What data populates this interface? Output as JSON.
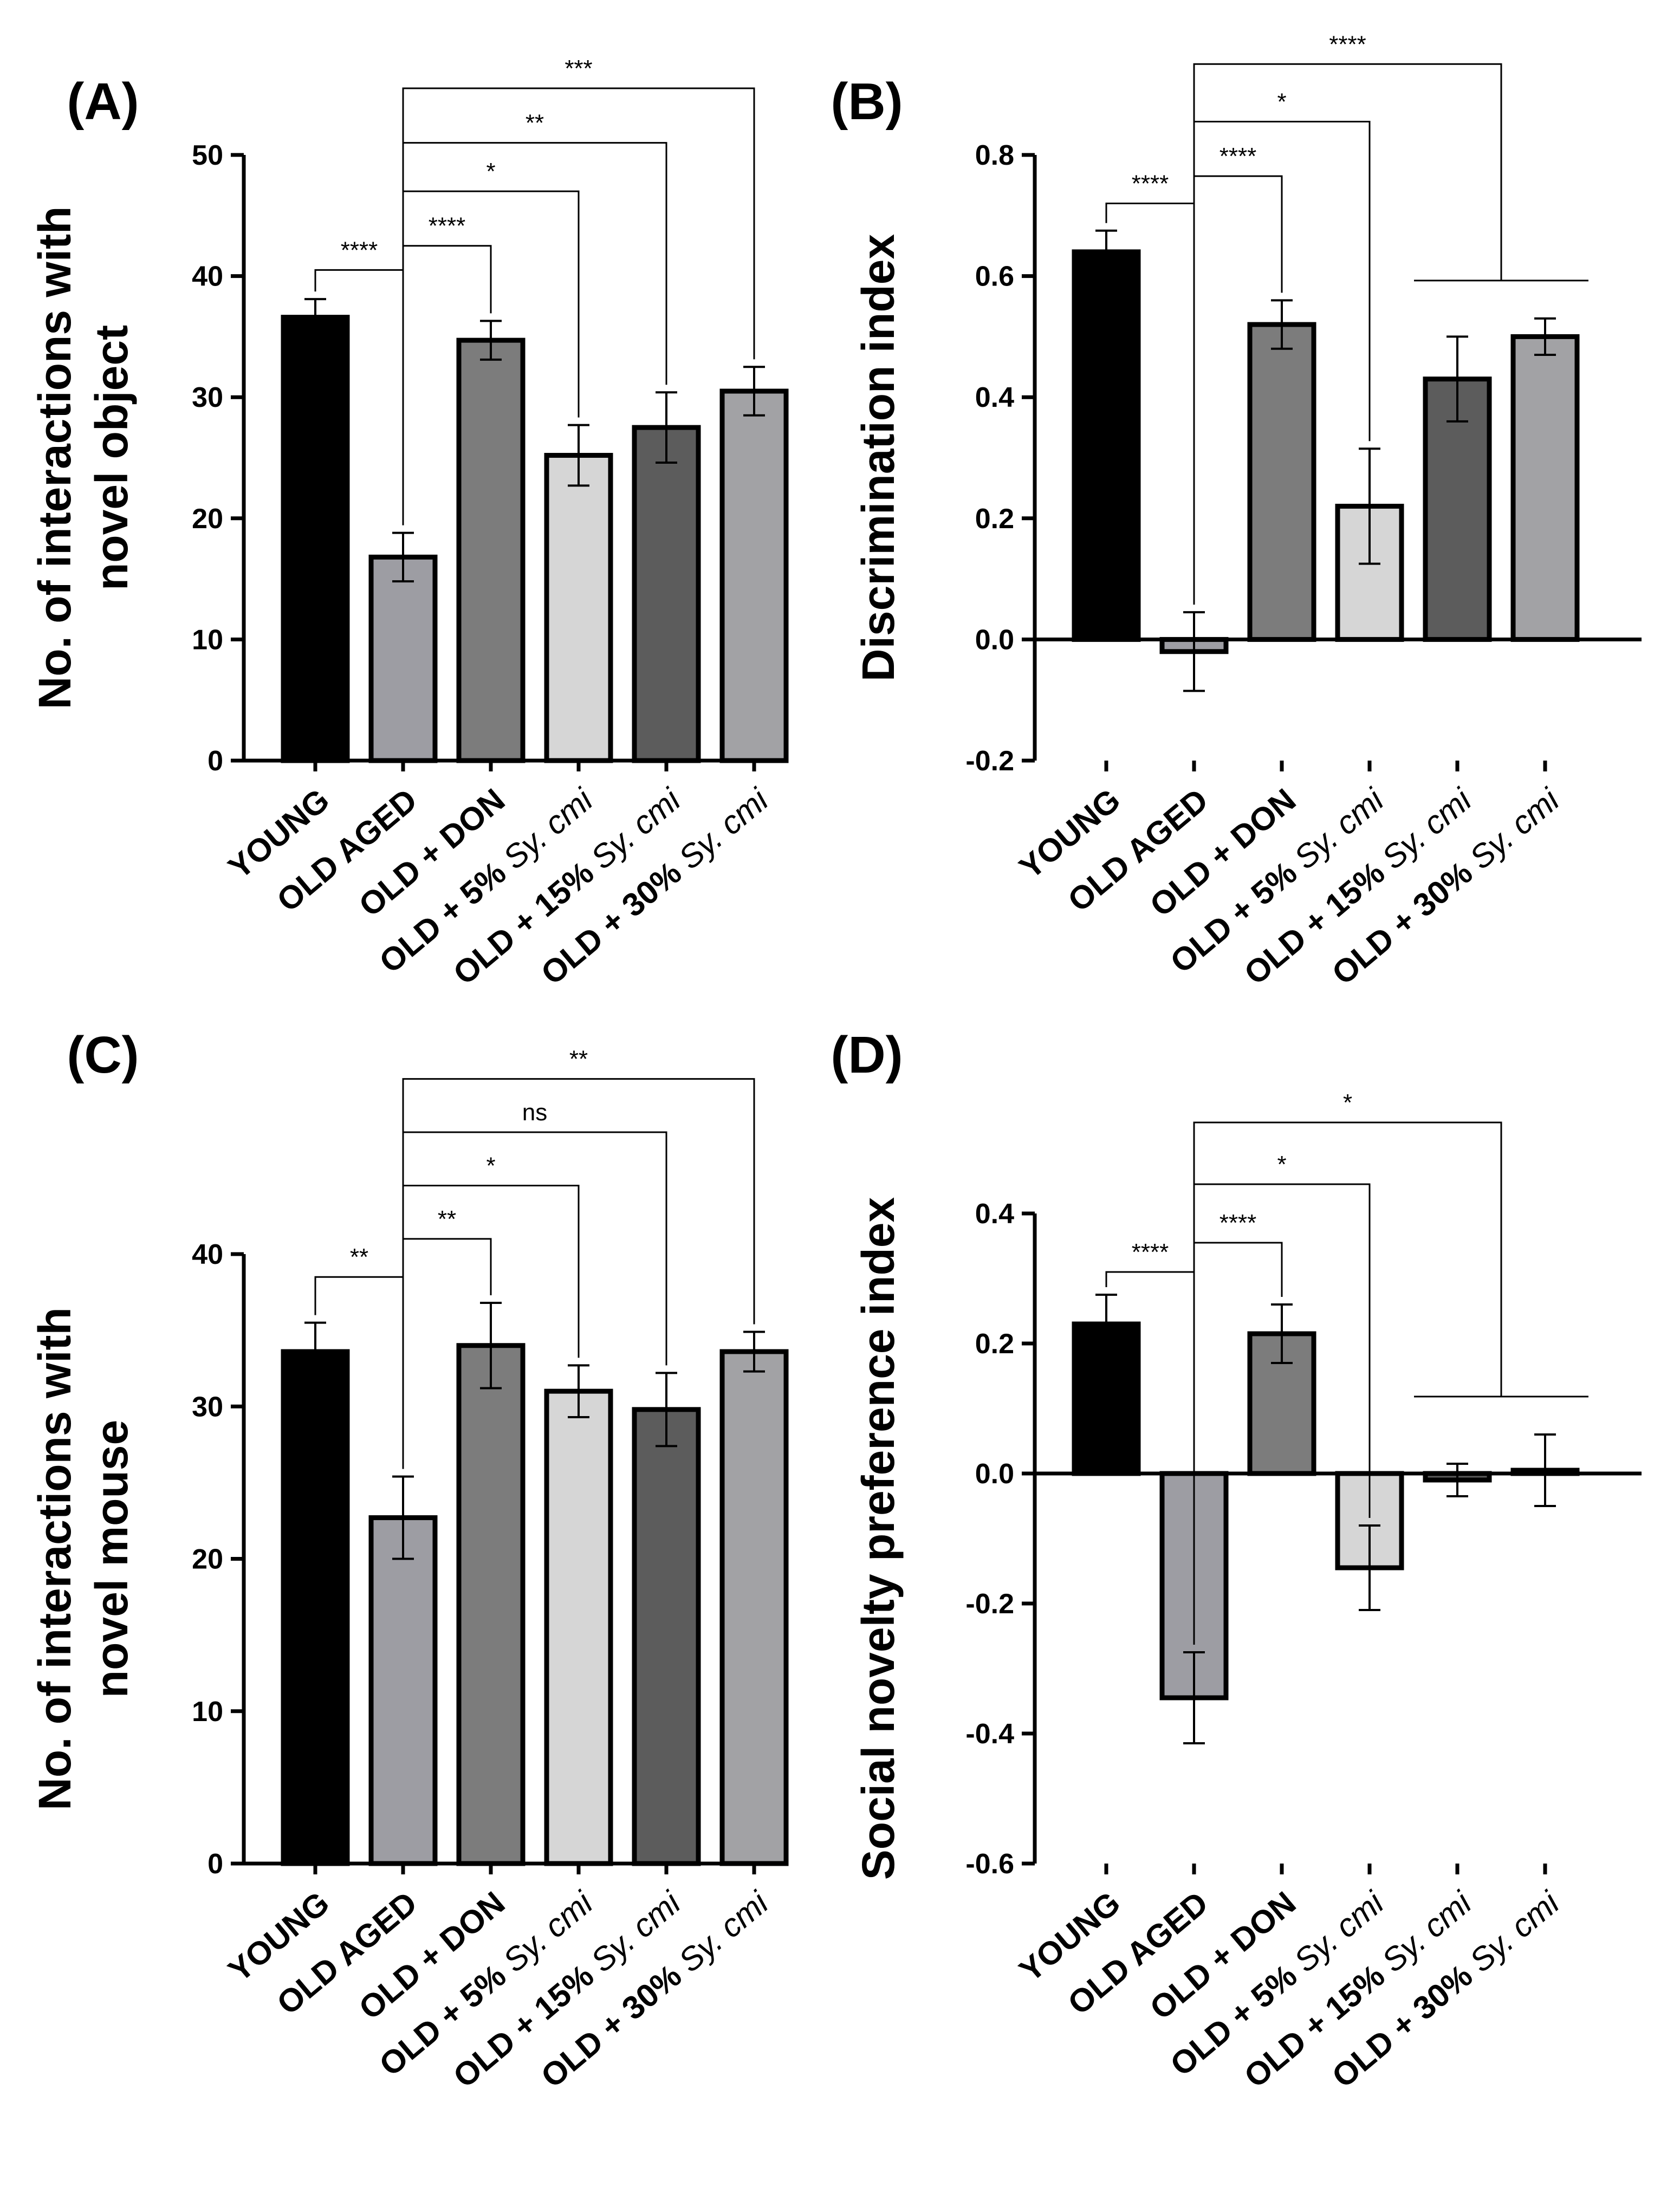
{
  "colors": {
    "YOUNG": "#000000",
    "OLD AGED": "#9d9da3",
    "OLD + DON": "#7c7c7c",
    "OLD + 5% Sy. cmi": "#d6d6d6",
    "OLD + 15% Sy. cmi": "#5c5c5c",
    "OLD + 30% Sy. cmi": "#a2a2a5"
  },
  "chart_data": [
    {
      "id": "A",
      "type": "bar",
      "panel_label": "(A)",
      "ylabel_lines": [
        "No. of interactions with",
        "novel object"
      ],
      "categories": [
        {
          "bold": "YOUNG",
          "italic": ""
        },
        {
          "bold": "OLD AGED",
          "italic": ""
        },
        {
          "bold": "OLD + DON",
          "italic": ""
        },
        {
          "bold": "OLD + 5%",
          "italic": " Sy. cmi"
        },
        {
          "bold": "OLD + 15%",
          "italic": " Sy. cmi"
        },
        {
          "bold": "OLD + 30%",
          "italic": " Sy. cmi"
        }
      ],
      "values": [
        36.6,
        16.8,
        34.7,
        25.2,
        27.5,
        30.5
      ],
      "errors": [
        1.5,
        2.0,
        1.6,
        2.5,
        2.9,
        2.0
      ],
      "ylim": [
        0,
        50
      ],
      "yticks": [
        0,
        10,
        20,
        30,
        40,
        50
      ],
      "tick_labels": [
        "0",
        "10",
        "20",
        "30",
        "40",
        "50"
      ],
      "significance": [
        {
          "from": 0,
          "to": 1,
          "label": "****",
          "level": 40.5
        },
        {
          "from": 1,
          "to": 2,
          "label": "****",
          "level": 42.5
        },
        {
          "from": 1,
          "to": 3,
          "label": "*",
          "level": 47.0
        },
        {
          "from": 1,
          "to": 4,
          "label": "**",
          "level": 51.0
        },
        {
          "from": 1,
          "to": 5,
          "label": "***",
          "level": 55.5
        }
      ]
    },
    {
      "id": "B",
      "type": "bar",
      "panel_label": "(B)",
      "ylabel_lines": [
        "Discrimination index"
      ],
      "categories": [
        {
          "bold": "YOUNG",
          "italic": ""
        },
        {
          "bold": "OLD AGED",
          "italic": ""
        },
        {
          "bold": "OLD + DON",
          "italic": ""
        },
        {
          "bold": "OLD + 5%",
          "italic": " Sy. cmi"
        },
        {
          "bold": "OLD + 15%",
          "italic": " Sy. cmi"
        },
        {
          "bold": "OLD + 30%",
          "italic": " Sy. cmi"
        }
      ],
      "values": [
        0.64,
        -0.02,
        0.52,
        0.22,
        0.43,
        0.5
      ],
      "errors": [
        0.035,
        0.065,
        0.04,
        0.095,
        0.07,
        0.03
      ],
      "ylim": [
        -0.2,
        0.8
      ],
      "yticks": [
        -0.2,
        0.0,
        0.2,
        0.4,
        0.6,
        0.8
      ],
      "tick_labels": [
        "-0.2",
        "0.0",
        "0.2",
        "0.4",
        "0.6",
        "0.8"
      ],
      "significance": [
        {
          "from": 0,
          "to": 1,
          "label": "****",
          "level": 0.72
        },
        {
          "from": 1,
          "to": 2,
          "label": "****",
          "level": 0.765
        },
        {
          "from": 1,
          "to": 3,
          "label": "*",
          "level": 0.855
        },
        {
          "from": 1,
          "to": "4-5",
          "label": "****",
          "level": 0.95
        }
      ]
    },
    {
      "id": "C",
      "type": "bar",
      "panel_label": "(C)",
      "ylabel_lines": [
        "No. of interactions with",
        "novel mouse"
      ],
      "categories": [
        {
          "bold": "YOUNG",
          "italic": ""
        },
        {
          "bold": "OLD AGED",
          "italic": ""
        },
        {
          "bold": "OLD + DON",
          "italic": ""
        },
        {
          "bold": "OLD + 5%",
          "italic": " Sy. cmi"
        },
        {
          "bold": "OLD + 15%",
          "italic": " Sy. cmi"
        },
        {
          "bold": "OLD + 30%",
          "italic": " Sy. cmi"
        }
      ],
      "values": [
        33.6,
        22.7,
        34.0,
        31.0,
        29.8,
        33.6
      ],
      "errors": [
        1.9,
        2.7,
        2.8,
        1.7,
        2.4,
        1.3
      ],
      "ylim": [
        0,
        40
      ],
      "yticks": [
        0,
        10,
        20,
        30,
        40
      ],
      "tick_labels": [
        "0",
        "10",
        "20",
        "30",
        "40"
      ],
      "significance": [
        {
          "from": 0,
          "to": 1,
          "label": "**",
          "level": 38.5
        },
        {
          "from": 1,
          "to": 2,
          "label": "**",
          "level": 41.0
        },
        {
          "from": 1,
          "to": 3,
          "label": "*",
          "level": 44.5
        },
        {
          "from": 1,
          "to": 4,
          "label": "ns",
          "level": 48.0
        },
        {
          "from": 1,
          "to": 5,
          "label": "**",
          "level": 51.5
        }
      ]
    },
    {
      "id": "D",
      "type": "bar",
      "panel_label": "(D)",
      "ylabel_lines": [
        "Social novelty preference index"
      ],
      "categories": [
        {
          "bold": "YOUNG",
          "italic": ""
        },
        {
          "bold": "OLD AGED",
          "italic": ""
        },
        {
          "bold": "OLD + DON",
          "italic": ""
        },
        {
          "bold": "OLD + 5%",
          "italic": " Sy. cmi"
        },
        {
          "bold": "OLD + 15%",
          "italic": " Sy. cmi"
        },
        {
          "bold": "OLD + 30%",
          "italic": " Sy. cmi"
        }
      ],
      "values": [
        0.23,
        -0.345,
        0.215,
        -0.145,
        -0.01,
        0.005
      ],
      "errors": [
        0.045,
        0.07,
        0.045,
        0.065,
        0.025,
        0.055
      ],
      "ylim": [
        -0.6,
        0.4
      ],
      "yticks": [
        -0.6,
        -0.4,
        -0.2,
        0.0,
        0.2,
        0.4
      ],
      "tick_labels": [
        "-0.6",
        "-0.4",
        "-0.2",
        "0.0",
        "0.2",
        "0.4"
      ],
      "significance": [
        {
          "from": 0,
          "to": 1,
          "label": "****",
          "level": 0.31
        },
        {
          "from": 1,
          "to": 2,
          "label": "****",
          "level": 0.355
        },
        {
          "from": 1,
          "to": 3,
          "label": "*",
          "level": 0.445
        },
        {
          "from": 1,
          "to": "4-5",
          "label": "*",
          "level": 0.54
        }
      ]
    }
  ]
}
